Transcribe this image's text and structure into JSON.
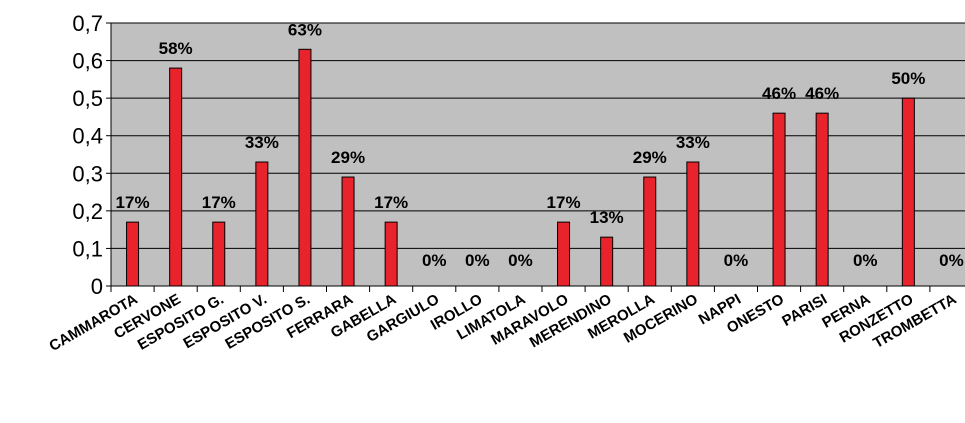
{
  "chart_data": {
    "type": "bar",
    "title": "",
    "xlabel": "",
    "ylabel": "",
    "ylim": [
      0,
      0.7
    ],
    "y_ticks": [
      "0",
      "0,1",
      "0,2",
      "0,3",
      "0,4",
      "0,5",
      "0,6",
      "0,7"
    ],
    "y_tick_values": [
      0,
      0.1,
      0.2,
      0.3,
      0.4,
      0.5,
      0.6,
      0.7
    ],
    "grid": true,
    "legend": "none",
    "categories": [
      "CAMMAROTA",
      "CERVONE",
      "ESPOSITO G.",
      "ESPOSITO V.",
      "ESPOSITO S.",
      "FERRARA",
      "GABELLA",
      "GARGIULO",
      "IROLLO",
      "LIMATOLA",
      "MARAVOLO",
      "MERENDINO",
      "MEROLLA",
      "MOCERINO",
      "NAPPI",
      "ONESTO",
      "PARISI",
      "PERNA",
      "RONZETTO",
      "TROMBETTA"
    ],
    "series": [
      {
        "values": [
          0.17,
          0.58,
          0.17,
          0.33,
          0.63,
          0.29,
          0.17,
          0,
          0,
          0,
          0.17,
          0.13,
          0.29,
          0.33,
          0,
          0.46,
          0.46,
          0,
          0.5,
          0
        ],
        "labels": [
          "17%",
          "58%",
          "17%",
          "33%",
          "63%",
          "29%",
          "17%",
          "0%",
          "0%",
          "0%",
          "17%",
          "13%",
          "29%",
          "33%",
          "0%",
          "46%",
          "46%",
          "0%",
          "50%",
          "0%"
        ]
      }
    ],
    "colors": {
      "plot_background": "#c0c0c0",
      "bar_fill": "#e8232c",
      "bar_stroke": "#000000",
      "gridline": "#000000"
    }
  }
}
